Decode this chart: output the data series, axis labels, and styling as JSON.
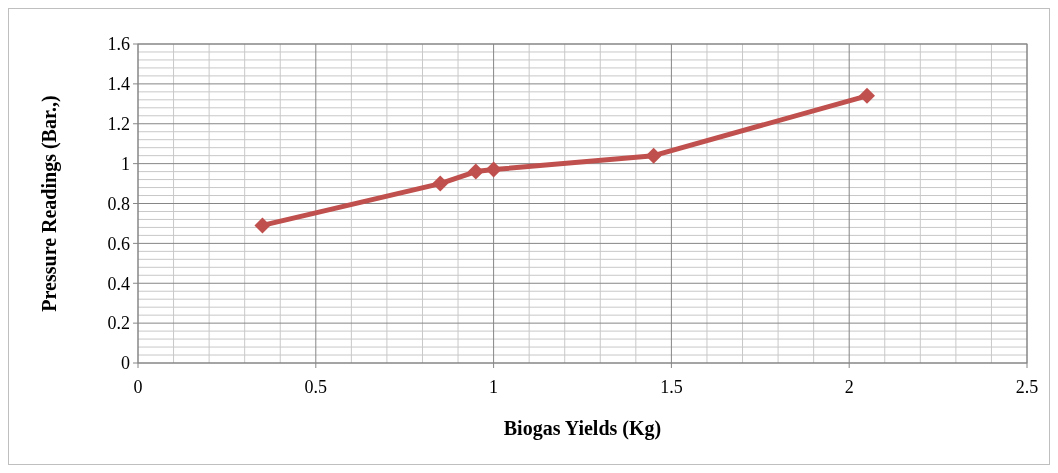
{
  "chart_data": {
    "type": "line",
    "xlabel": "Biogas Yields (Kg)",
    "ylabel": "Pressure Readings (Bar.,)",
    "x": [
      0.35,
      0.85,
      0.95,
      1.0,
      1.45,
      2.05
    ],
    "series": [
      {
        "color": "#c0504d",
        "values": [
          0.69,
          0.9,
          0.96,
          0.97,
          1.04,
          1.34
        ]
      }
    ],
    "xlim": [
      0,
      2.5
    ],
    "xticks": [
      0,
      0.5,
      1,
      1.5,
      2,
      2.5
    ],
    "ylim": [
      0,
      1.6
    ],
    "yticks": [
      0,
      0.2,
      0.4,
      0.6,
      0.8,
      1,
      1.2,
      1.4,
      1.6
    ],
    "grid": true,
    "marker": "diamond",
    "line_style": "solid"
  }
}
